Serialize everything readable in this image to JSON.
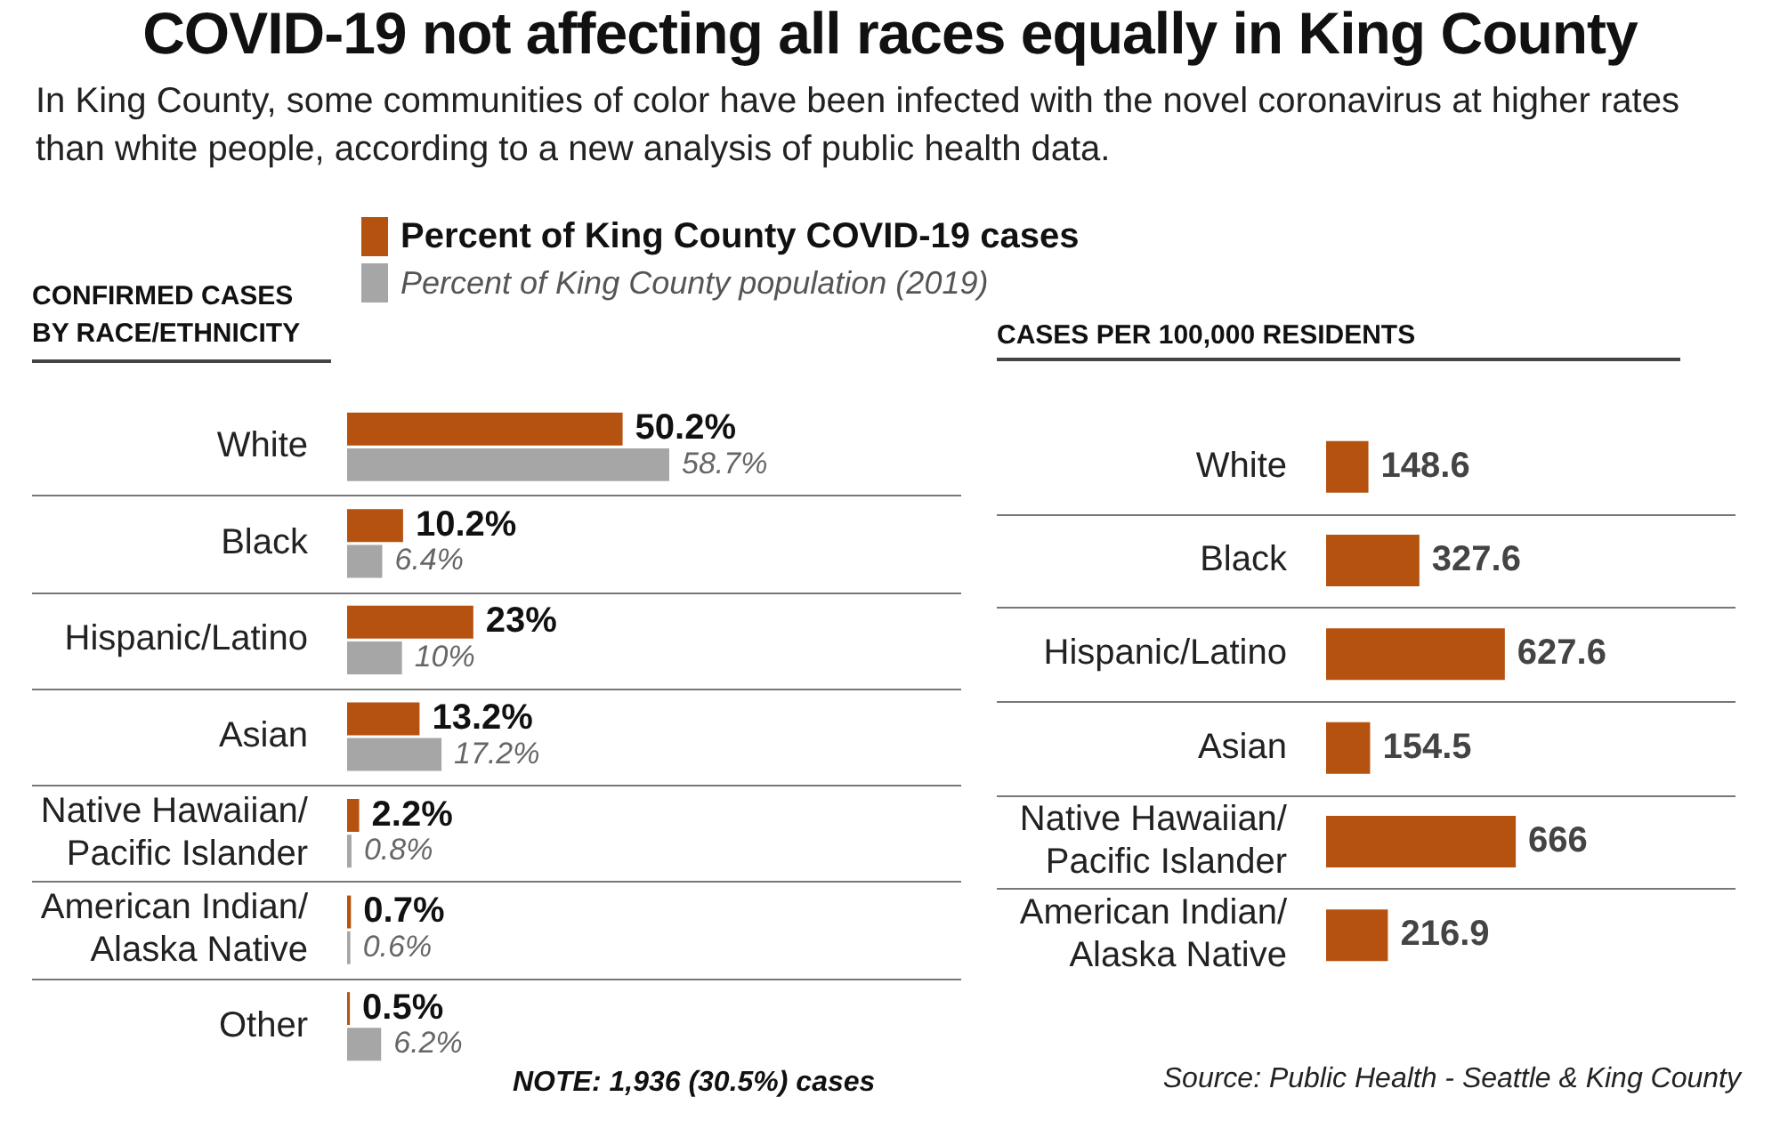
{
  "chart_data": [
    {
      "type": "bar",
      "orientation": "horizontal",
      "title": "COVID-19 not affecting all races equally in King County",
      "subtitle": "In King County, some communities of color have been infected with the novel coronavirus at higher rates than white people, according to a new analysis of public health data.",
      "ylabel": "CONFIRMED CASES BY RACE/ETHNICITY",
      "categories": [
        "White",
        "Black",
        "Hispanic/Latino",
        "Asian",
        "Native Hawaiian/\nPacific Islander",
        "American Indian/\nAlaska Native",
        "Other"
      ],
      "series": [
        {
          "name": "Percent of King County COVID-19 cases",
          "color": "#b5520f",
          "values": [
            50.2,
            10.2,
            23,
            13.2,
            2.2,
            0.7,
            0.5
          ],
          "value_labels": [
            "50.2%",
            "10.2%",
            "23%",
            "13.2%",
            "2.2%",
            "0.7%",
            "0.5%"
          ]
        },
        {
          "name": "Percent of King County population (2019)",
          "color": "#a6a6a6",
          "values": [
            58.7,
            6.4,
            10,
            17.2,
            0.8,
            0.6,
            6.2
          ],
          "value_labels": [
            "58.7%",
            "6.4%",
            "10%",
            "17.2%",
            "0.8%",
            "0.6%",
            "6.2%"
          ]
        }
      ],
      "legend": "top",
      "grid": "y",
      "annotations": [
        "NOTE: 1,936 (30.5%) cases"
      ]
    },
    {
      "type": "bar",
      "orientation": "horizontal",
      "title": "CASES PER 100,000 RESIDENTS",
      "categories": [
        "White",
        "Black",
        "Hispanic/Latino",
        "Asian",
        "Native Hawaiian/\nPacific Islander",
        "American Indian/\nAlaska Native"
      ],
      "values": [
        148.6,
        327.6,
        627.6,
        154.5,
        666,
        216.9
      ],
      "color": "#b5520f",
      "data_labels": true,
      "grid": "y",
      "annotations": [
        "Source: Public Health - Seattle & King County"
      ]
    }
  ]
}
